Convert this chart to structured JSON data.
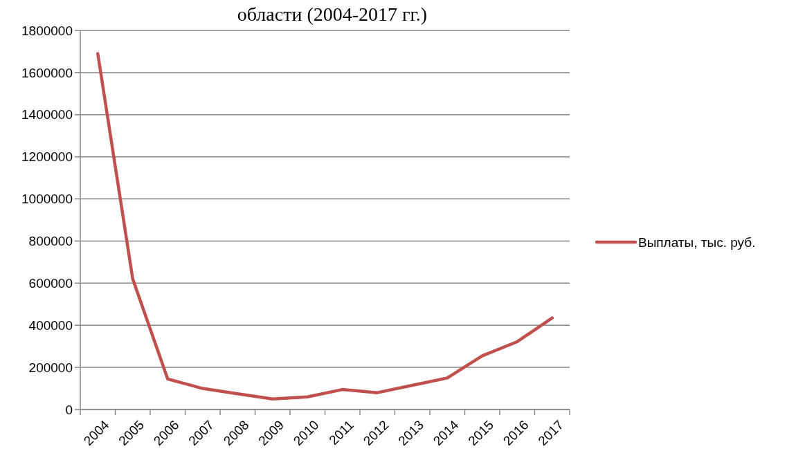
{
  "chart_data": {
    "type": "line",
    "title": "области (2004-2017 гг.)",
    "categories": [
      "2004",
      "2005",
      "2006",
      "2007",
      "2008",
      "2009",
      "2010",
      "2011",
      "2012",
      "2013",
      "2014",
      "2015",
      "2016",
      "2017"
    ],
    "series": [
      {
        "name": "Выплаты, тыс. руб.",
        "color": "#c0504d",
        "values": [
          1690000,
          620000,
          145000,
          100000,
          75000,
          50000,
          60000,
          95000,
          80000,
          115000,
          150000,
          255000,
          322000,
          435000
        ]
      }
    ],
    "ylim": [
      0,
      1800000
    ],
    "yticks": [
      0,
      200000,
      400000,
      600000,
      800000,
      1000000,
      1200000,
      1400000,
      1600000,
      1800000
    ],
    "grid": "y",
    "legend": "right",
    "marker": "none",
    "line_style": "solid"
  }
}
